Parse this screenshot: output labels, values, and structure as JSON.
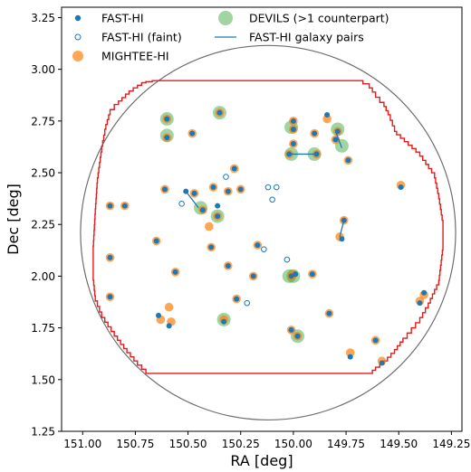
{
  "chart_data": {
    "type": "scatter",
    "title": "",
    "xlabel": "RA [deg]",
    "ylabel": "Dec [deg]",
    "xlim": [
      151.1,
      149.2
    ],
    "ylim": [
      1.25,
      3.3
    ],
    "x_inverted": true,
    "grid": false,
    "legend_placement": "top",
    "x_ticks": [
      151.0,
      150.75,
      150.5,
      150.25,
      150.0,
      149.75,
      149.5,
      149.25
    ],
    "x_tick_labels": [
      "151.00",
      "150.75",
      "150.50",
      "150.25",
      "150.00",
      "149.75",
      "149.50",
      "149.25"
    ],
    "y_ticks": [
      1.25,
      1.5,
      1.75,
      2.0,
      2.25,
      2.5,
      2.75,
      3.0,
      3.25
    ],
    "y_tick_labels": [
      "1.25",
      "1.50",
      "1.75",
      "2.00",
      "2.25",
      "2.50",
      "2.75",
      "3.00",
      "3.25"
    ],
    "colors": {
      "fast": "#1f77b4",
      "mightee": "#ff7f0e",
      "devils": "#2ca02c",
      "footprint": "#e41a1c",
      "circle": "#6e6e6e",
      "axes": "#000000"
    },
    "legend": [
      {
        "label": "FAST-HI",
        "marker": "dot"
      },
      {
        "label": "FAST-HI (faint)",
        "marker": "ring"
      },
      {
        "label": "MIGHTEE-HI",
        "marker": "orange"
      },
      {
        "label": "DEVILS (>1 counterpart)",
        "marker": "green"
      },
      {
        "label": "FAST-HI galaxy pairs",
        "marker": "line"
      }
    ],
    "circle": {
      "ra": 150.12,
      "dec": 2.21,
      "radius_deg": 0.89
    },
    "footprint": [
      [
        150.89,
        2.71
      ],
      [
        150.87,
        2.78
      ],
      [
        150.83,
        2.83
      ],
      [
        150.78,
        2.88
      ],
      [
        150.74,
        2.91
      ],
      [
        150.7,
        2.935
      ],
      [
        150.64,
        2.945
      ],
      [
        149.67,
        2.945
      ],
      [
        149.64,
        2.93
      ],
      [
        149.61,
        2.89
      ],
      [
        149.57,
        2.84
      ],
      [
        149.54,
        2.78
      ],
      [
        149.51,
        2.7
      ],
      [
        149.4,
        2.6
      ],
      [
        149.33,
        2.5
      ],
      [
        149.31,
        2.4
      ],
      [
        149.29,
        2.27
      ],
      [
        149.29,
        2.15
      ],
      [
        149.31,
        1.98
      ],
      [
        149.36,
        1.87
      ],
      [
        149.4,
        1.8
      ],
      [
        149.44,
        1.75
      ],
      [
        149.48,
        1.7
      ],
      [
        149.52,
        1.645
      ],
      [
        149.57,
        1.59
      ],
      [
        149.61,
        1.56
      ],
      [
        149.64,
        1.53
      ],
      [
        150.7,
        1.53
      ],
      [
        150.74,
        1.57
      ],
      [
        150.79,
        1.63
      ],
      [
        150.85,
        1.71
      ],
      [
        150.91,
        1.8
      ],
      [
        150.94,
        1.88
      ],
      [
        150.95,
        1.98
      ],
      [
        150.95,
        2.12
      ],
      [
        150.94,
        2.3
      ],
      [
        150.93,
        2.45
      ],
      [
        150.91,
        2.6
      ],
      [
        150.89,
        2.71
      ]
    ],
    "series": [
      {
        "name": "MIGHTEE-HI",
        "points": [
          [
            150.6,
            2.76
          ],
          [
            150.6,
            2.67
          ],
          [
            150.48,
            2.69
          ],
          [
            150.35,
            2.79
          ],
          [
            150.28,
            2.52
          ],
          [
            150.31,
            2.41
          ],
          [
            150.38,
            2.43
          ],
          [
            150.47,
            2.4
          ],
          [
            150.61,
            2.42
          ],
          [
            150.4,
            2.24
          ],
          [
            150.43,
            2.32
          ],
          [
            150.36,
            2.29
          ],
          [
            150.25,
            2.42
          ],
          [
            150.87,
            2.34
          ],
          [
            150.8,
            2.34
          ],
          [
            150.65,
            2.17
          ],
          [
            150.87,
            2.09
          ],
          [
            150.56,
            2.02
          ],
          [
            150.39,
            2.14
          ],
          [
            150.31,
            2.05
          ],
          [
            150.17,
            2.15
          ],
          [
            150.19,
            2.0
          ],
          [
            150.0,
            2.01
          ],
          [
            150.01,
            2.0
          ],
          [
            149.91,
            2.01
          ],
          [
            150.0,
            2.71
          ],
          [
            149.79,
            2.7
          ],
          [
            149.74,
            2.56
          ],
          [
            149.89,
            2.59
          ],
          [
            150.02,
            2.59
          ],
          [
            150.0,
            2.64
          ],
          [
            150.0,
            2.75
          ],
          [
            149.9,
            2.69
          ],
          [
            149.84,
            2.76
          ],
          [
            149.8,
            2.66
          ],
          [
            149.76,
            2.27
          ],
          [
            149.78,
            2.19
          ],
          [
            149.49,
            2.44
          ],
          [
            150.87,
            1.9
          ],
          [
            150.59,
            1.85
          ],
          [
            150.63,
            1.79
          ],
          [
            150.58,
            1.78
          ],
          [
            150.33,
            1.79
          ],
          [
            150.27,
            1.89
          ],
          [
            150.01,
            1.74
          ],
          [
            149.98,
            1.71
          ],
          [
            149.83,
            1.82
          ],
          [
            149.73,
            1.63
          ],
          [
            149.61,
            1.69
          ],
          [
            149.58,
            1.59
          ],
          [
            149.38,
            1.91
          ],
          [
            149.4,
            1.88
          ]
        ]
      },
      {
        "name": "FAST-HI",
        "points": [
          [
            150.6,
            2.76
          ],
          [
            150.6,
            2.67
          ],
          [
            150.48,
            2.69
          ],
          [
            150.35,
            2.79
          ],
          [
            150.28,
            2.52
          ],
          [
            150.31,
            2.41
          ],
          [
            150.38,
            2.43
          ],
          [
            150.47,
            2.4
          ],
          [
            150.61,
            2.42
          ],
          [
            150.51,
            2.41
          ],
          [
            150.36,
            2.34
          ],
          [
            150.43,
            2.32
          ],
          [
            150.36,
            2.29
          ],
          [
            150.25,
            2.42
          ],
          [
            150.87,
            2.34
          ],
          [
            150.8,
            2.34
          ],
          [
            150.65,
            2.17
          ],
          [
            150.87,
            2.09
          ],
          [
            150.56,
            2.02
          ],
          [
            150.39,
            2.14
          ],
          [
            150.31,
            2.05
          ],
          [
            150.17,
            2.15
          ],
          [
            150.19,
            2.0
          ],
          [
            150.01,
            2.0
          ],
          [
            149.99,
            2.01
          ],
          [
            149.91,
            2.01
          ],
          [
            150.0,
            2.71
          ],
          [
            149.79,
            2.7
          ],
          [
            149.74,
            2.56
          ],
          [
            149.89,
            2.59
          ],
          [
            150.02,
            2.59
          ],
          [
            150.0,
            2.64
          ],
          [
            150.0,
            2.75
          ],
          [
            149.9,
            2.69
          ],
          [
            149.84,
            2.78
          ],
          [
            149.8,
            2.66
          ],
          [
            149.76,
            2.27
          ],
          [
            149.77,
            2.18
          ],
          [
            149.49,
            2.43
          ],
          [
            150.87,
            1.9
          ],
          [
            150.59,
            1.76
          ],
          [
            150.64,
            1.81
          ],
          [
            150.33,
            1.78
          ],
          [
            150.27,
            1.89
          ],
          [
            150.01,
            1.74
          ],
          [
            149.98,
            1.71
          ],
          [
            149.83,
            1.82
          ],
          [
            149.73,
            1.61
          ],
          [
            149.61,
            1.69
          ],
          [
            149.58,
            1.58
          ],
          [
            149.38,
            1.92
          ],
          [
            149.4,
            1.87
          ]
        ]
      },
      {
        "name": "FAST-HI (faint)",
        "points": [
          [
            150.32,
            2.48
          ],
          [
            150.12,
            2.43
          ],
          [
            150.08,
            2.43
          ],
          [
            150.1,
            2.37
          ],
          [
            150.53,
            2.35
          ],
          [
            150.22,
            1.87
          ],
          [
            150.03,
            2.08
          ],
          [
            150.14,
            2.13
          ]
        ]
      },
      {
        "name": "DEVILS (>1 counterpart)",
        "points": [
          [
            150.6,
            2.76
          ],
          [
            150.6,
            2.68
          ],
          [
            150.35,
            2.79
          ],
          [
            150.44,
            2.33
          ],
          [
            150.36,
            2.29
          ],
          [
            150.01,
            2.59
          ],
          [
            149.9,
            2.59
          ],
          [
            149.79,
            2.71
          ],
          [
            149.77,
            2.63
          ],
          [
            150.02,
            2.0
          ],
          [
            150.0,
            2.0
          ],
          [
            150.33,
            1.79
          ],
          [
            149.98,
            1.71
          ],
          [
            150.01,
            2.72
          ]
        ]
      }
    ],
    "pairs": [
      [
        [
          150.51,
          2.41
        ],
        [
          150.45,
          2.33
        ]
      ],
      [
        [
          150.02,
          2.59
        ],
        [
          149.9,
          2.59
        ]
      ],
      [
        [
          149.8,
          2.7
        ],
        [
          149.77,
          2.62
        ]
      ],
      [
        [
          149.78,
          2.19
        ],
        [
          149.76,
          2.27
        ]
      ],
      [
        [
          150.01,
          2.0
        ],
        [
          149.99,
          2.0
        ]
      ]
    ]
  }
}
